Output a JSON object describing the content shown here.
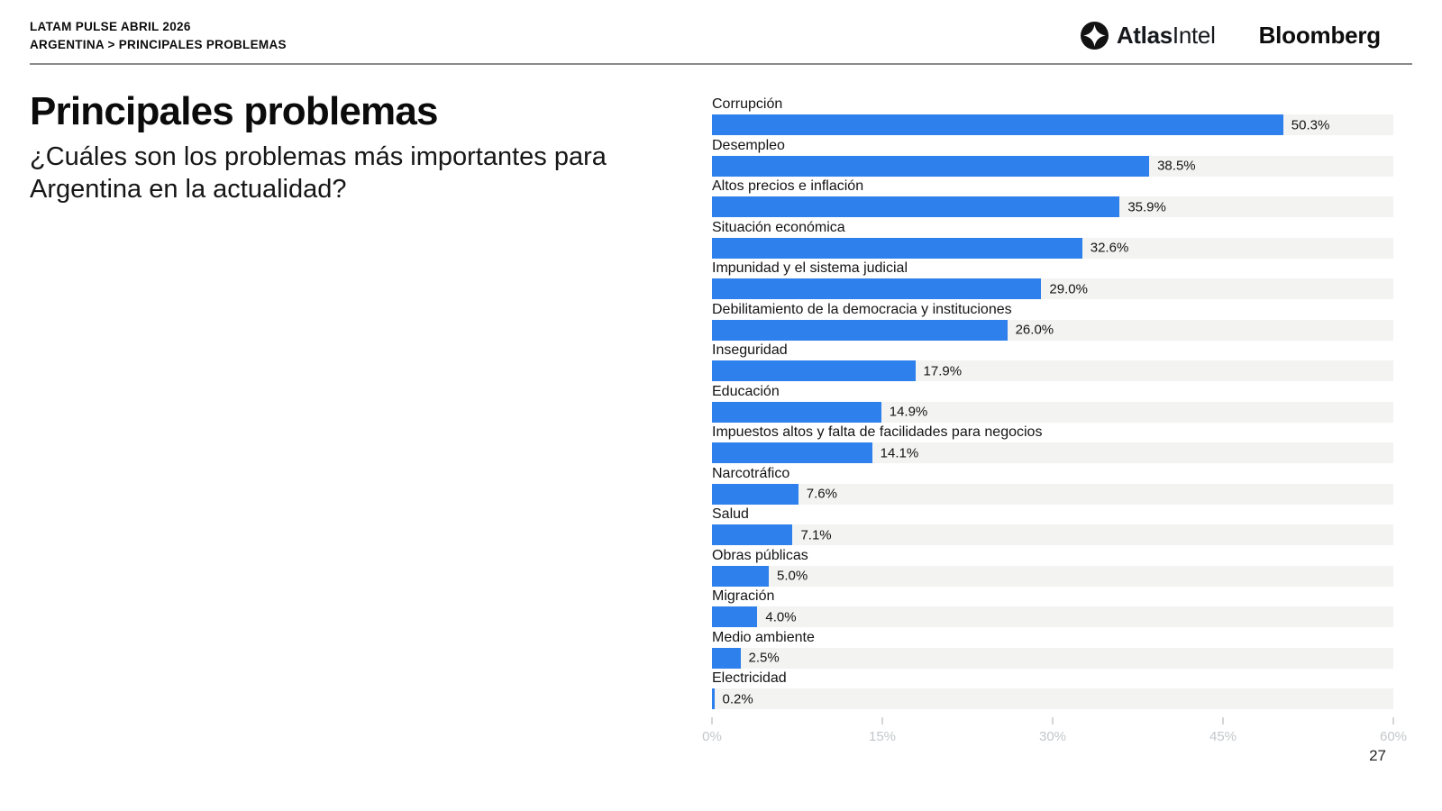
{
  "header": {
    "kicker_line1": "LATAM PULSE ABRIL 2026",
    "kicker_line2": "ARGENTINA > PRINCIPALES PROBLEMAS",
    "logos": {
      "atlasintel_icon": "four-point-star-in-circle",
      "atlasintel_bold": "Atlas",
      "atlasintel_regular": "Intel",
      "bloomberg": "Bloomberg"
    }
  },
  "main": {
    "title": "Principales problemas",
    "subtitle": "¿Cuáles son los problemas más importantes para Argentina en la actualidad?"
  },
  "chart_data": {
    "type": "bar",
    "orientation": "horizontal",
    "categories": [
      "Corrupción",
      "Desempleo",
      "Altos precios e inflación",
      "Situación económica",
      "Impunidad y el sistema judicial",
      "Debilitamiento de la democracia y instituciones",
      "Inseguridad",
      "Educación",
      "Impuestos altos y falta de facilidades para negocios",
      "Narcotráfico",
      "Salud",
      "Obras públicas",
      "Migración",
      "Medio ambiente",
      "Electricidad"
    ],
    "values": [
      50.3,
      38.5,
      35.9,
      32.6,
      29.0,
      26.0,
      17.9,
      14.9,
      14.1,
      7.6,
      7.1,
      5.0,
      4.0,
      2.5,
      0.2
    ],
    "value_suffix": "%",
    "xlim": [
      0,
      60
    ],
    "x_ticks": [
      "0%",
      "15%",
      "30%",
      "45%",
      "60%"
    ],
    "grid": false,
    "legend": "none",
    "bar_color": "#2e80ec",
    "track_color": "#f3f3f1",
    "axis_label_color": "#c3c7ca"
  },
  "footer": {
    "page_number": "27"
  }
}
